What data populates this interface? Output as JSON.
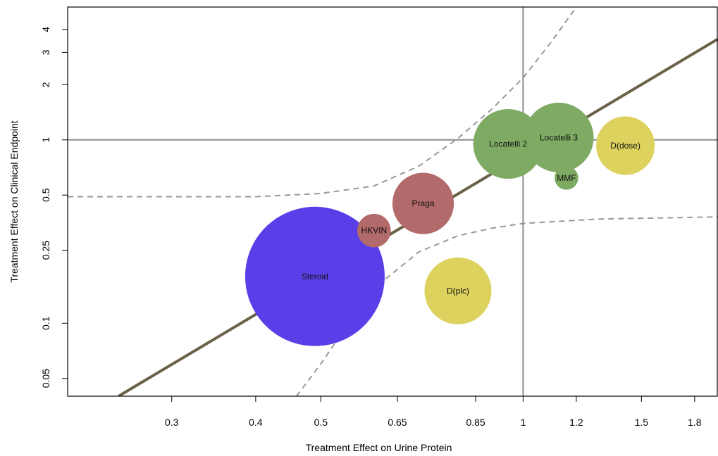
{
  "chart_data": {
    "type": "scatter",
    "xlabel": "Treatment Effect on Urine Protein",
    "ylabel": "Treatment Effect on Clinical Endpoint",
    "xscale": "log",
    "yscale": "log",
    "xlim": [
      0.21,
      1.95
    ],
    "ylim": [
      0.04,
      5.3
    ],
    "x_ticks": [
      {
        "value": 0.3,
        "label": "0.3"
      },
      {
        "value": 0.4,
        "label": "0.4"
      },
      {
        "value": 0.5,
        "label": "0.5"
      },
      {
        "value": 0.65,
        "label": "0.65"
      },
      {
        "value": 0.85,
        "label": "0.85"
      },
      {
        "value": 1,
        "label": "1"
      },
      {
        "value": 1.2,
        "label": "1.2"
      },
      {
        "value": 1.5,
        "label": "1.5"
      },
      {
        "value": 1.8,
        "label": "1.8"
      }
    ],
    "y_ticks": [
      {
        "value": 0.05,
        "label": "0.05"
      },
      {
        "value": 0.1,
        "label": "0.1"
      },
      {
        "value": 0.25,
        "label": "0.25"
      },
      {
        "value": 0.5,
        "label": "0.5"
      },
      {
        "value": 1,
        "label": "1"
      },
      {
        "value": 2,
        "label": "2"
      },
      {
        "value": 3,
        "label": "3"
      },
      {
        "value": 4,
        "label": "4"
      }
    ],
    "reference_lines": {
      "x": 1,
      "y": 1
    },
    "regression_line": {
      "points": [
        [
          0.25,
          0.04
        ],
        [
          1.95,
          3.55
        ]
      ],
      "color": "#6b6148"
    },
    "confidence_band": {
      "upper": [
        [
          0.21,
          0.49
        ],
        [
          0.4,
          0.49
        ],
        [
          0.5,
          0.51
        ],
        [
          0.6,
          0.56
        ],
        [
          0.7,
          0.72
        ],
        [
          0.8,
          1.02
        ],
        [
          0.9,
          1.48
        ],
        [
          1.0,
          2.18
        ],
        [
          1.1,
          3.4
        ],
        [
          1.2,
          5.3
        ]
      ],
      "lower": [
        [
          0.46,
          0.04
        ],
        [
          0.5,
          0.06
        ],
        [
          0.55,
          0.1
        ],
        [
          0.6,
          0.155
        ],
        [
          0.7,
          0.245
        ],
        [
          0.8,
          0.3
        ],
        [
          0.9,
          0.33
        ],
        [
          1.0,
          0.35
        ],
        [
          1.3,
          0.37
        ],
        [
          1.95,
          0.38
        ]
      ],
      "color": "#999999"
    },
    "points": [
      {
        "label": "Steroid",
        "x": 0.49,
        "y": 0.18,
        "size": 1.0,
        "color": "#5a3fe8"
      },
      {
        "label": "HKVIN",
        "x": 0.6,
        "y": 0.32,
        "size": 0.24,
        "color": "#b36a6a"
      },
      {
        "label": "Praga",
        "x": 0.71,
        "y": 0.45,
        "size": 0.44,
        "color": "#b36a6a"
      },
      {
        "label": "D(plc)",
        "x": 0.8,
        "y": 0.15,
        "size": 0.48,
        "color": "#ddd25e"
      },
      {
        "label": "Locatelli 2",
        "x": 0.95,
        "y": 0.95,
        "size": 0.5,
        "color": "#7faa63"
      },
      {
        "label": "Locatelli 3",
        "x": 1.13,
        "y": 1.03,
        "size": 0.5,
        "color": "#7faa63"
      },
      {
        "label": "MMF",
        "x": 1.16,
        "y": 0.62,
        "size": 0.17,
        "color": "#7faa63"
      },
      {
        "label": "D(dose)",
        "x": 1.42,
        "y": 0.93,
        "size": 0.42,
        "color": "#ddd25e"
      }
    ]
  }
}
